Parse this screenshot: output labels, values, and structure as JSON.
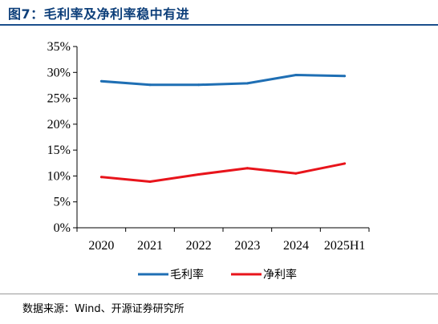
{
  "figure": {
    "title": "图7：毛利率及净利率稳中有进",
    "source": "数据来源：Wind、开源证券研究所"
  },
  "chart_data": {
    "type": "line",
    "categories": [
      "2020",
      "2021",
      "2022",
      "2023",
      "2024",
      "2025H1"
    ],
    "series": [
      {
        "name": "毛利率",
        "values": [
          28.3,
          27.6,
          27.6,
          27.9,
          29.5,
          29.3
        ],
        "color": "#1f6fb4"
      },
      {
        "name": "净利率",
        "values": [
          9.8,
          8.9,
          10.3,
          11.5,
          10.5,
          12.4
        ],
        "color": "#e8141b"
      }
    ],
    "y_ticks": [
      "0%",
      "5%",
      "10%",
      "15%",
      "20%",
      "25%",
      "30%",
      "35%"
    ],
    "ylim": [
      0,
      35
    ],
    "grid": false,
    "legend_position": "bottom"
  }
}
